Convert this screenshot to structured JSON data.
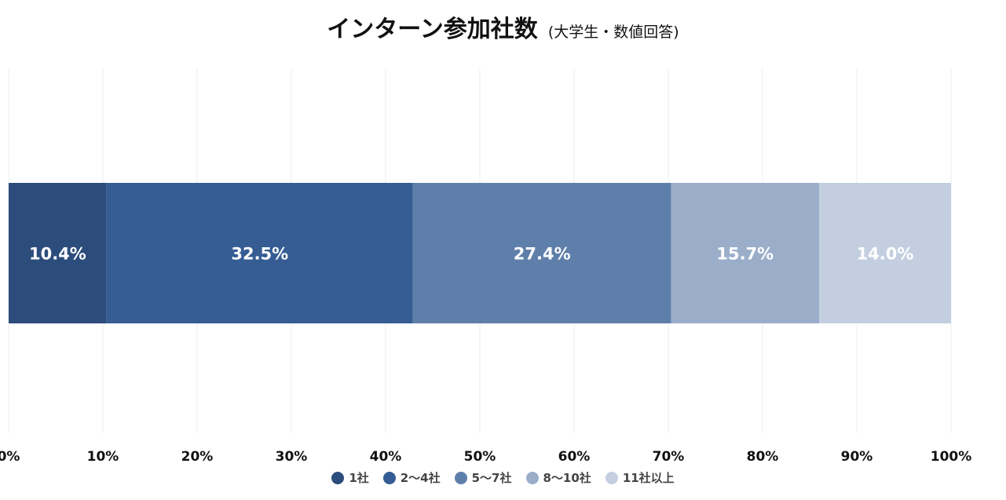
{
  "chart_data": {
    "type": "bar",
    "orientation": "horizontal",
    "stacked": true,
    "title": "インターン参加社数",
    "subtitle": "(大学生・数値回答)",
    "xlim": [
      0,
      100
    ],
    "x_ticks": [
      "0%",
      "10%",
      "20%",
      "30%",
      "40%",
      "50%",
      "60%",
      "70%",
      "80%",
      "90%",
      "100%"
    ],
    "grid": true,
    "legend_position": "bottom",
    "series": [
      {
        "name": "1社",
        "value": 10.4,
        "label": "10.4%",
        "color": "#2c4c7c"
      },
      {
        "name": "2〜4社",
        "value": 32.5,
        "label": "32.5%",
        "color": "#355d94"
      },
      {
        "name": "5〜7社",
        "value": 27.4,
        "label": "27.4%",
        "color": "#5f7fab"
      },
      {
        "name": "8〜10社",
        "value": 15.7,
        "label": "15.7%",
        "color": "#9aaeca"
      },
      {
        "name": "11社以上",
        "value": 14.0,
        "label": "14.0%",
        "color": "#c3cfe0"
      }
    ]
  }
}
